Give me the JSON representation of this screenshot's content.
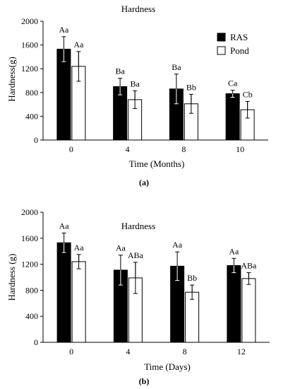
{
  "colors": {
    "ras": "#000000",
    "pond": "#ffffff",
    "axis": "#000000"
  },
  "chart_data": [
    {
      "type": "bar",
      "panel_label": "(a)",
      "title": "Hardness",
      "xlabel": "Time (Months)",
      "ylabel": "Hardness(g)",
      "categories": [
        "0",
        "4",
        "8",
        "10"
      ],
      "ylim": [
        0,
        2000
      ],
      "yticks": [
        "0",
        "400",
        "800",
        "1200",
        "1600",
        "2000"
      ],
      "grid": false,
      "legend_position": "top-right",
      "series": [
        {
          "name": "RAS",
          "values": [
            1530,
            900,
            860,
            780
          ],
          "errors": [
            210,
            140,
            250,
            60
          ],
          "letters": [
            "Aa",
            "Ba",
            "Ba",
            "Ca"
          ]
        },
        {
          "name": "Pond",
          "values": [
            1240,
            680,
            610,
            510
          ],
          "errors": [
            250,
            150,
            160,
            140
          ],
          "letters": [
            "Aa",
            "Ba",
            "Bb",
            "Cb"
          ]
        }
      ]
    },
    {
      "type": "bar",
      "panel_label": "(b)",
      "title": "Hardness",
      "xlabel": "Time (Days)",
      "ylabel": "Hardness (g)",
      "categories": [
        "0",
        "4",
        "8",
        "12"
      ],
      "ylim": [
        0,
        2000
      ],
      "yticks": [
        "0",
        "400",
        "800",
        "1200",
        "1600",
        "2000"
      ],
      "grid": false,
      "legend_position": "none",
      "series": [
        {
          "name": "RAS",
          "values": [
            1530,
            1110,
            1170,
            1180
          ],
          "errors": [
            150,
            230,
            220,
            110
          ],
          "letters": [
            "Aa",
            "Aa",
            "Aa",
            "Aa"
          ]
        },
        {
          "name": "Pond",
          "values": [
            1240,
            990,
            770,
            980
          ],
          "errors": [
            110,
            240,
            110,
            90
          ],
          "letters": [
            "Aa",
            "ABa",
            "Bb",
            "ABa"
          ]
        }
      ]
    }
  ]
}
